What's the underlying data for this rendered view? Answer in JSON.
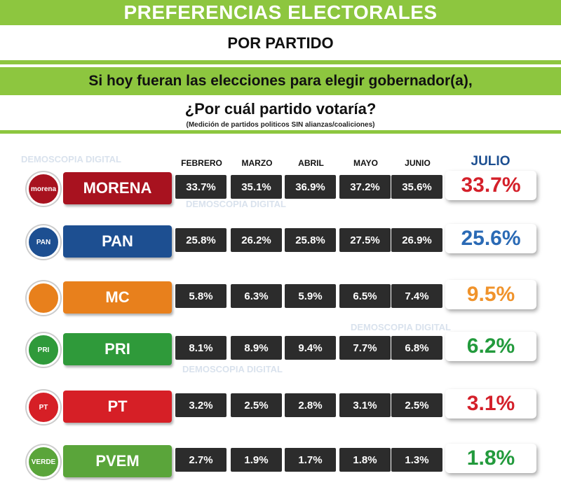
{
  "header": {
    "title": "PREFERENCIAS ELECTORALES",
    "subtitle": "POR PARTIDO",
    "question": "Si hoy fueran las elecciones para elegir gobernador(a),",
    "question2": "¿Por cuál partido votaría?",
    "note": "(Medición de partidos politicos SIN alianzas/coaliciones)"
  },
  "watermark": "DEMOSCOPIA DIGITAL",
  "colors": {
    "accent_green": "#8dc63f",
    "MORENA": "#a8121f",
    "PAN": "#1d4f91",
    "MC": "#e8801c",
    "PRI": "#2f9a3a",
    "PT": "#d61f26",
    "PVEM": "#5aa53a"
  },
  "chart_data": {
    "type": "table",
    "columns": [
      "FEBRERO",
      "MARZO",
      "ABRIL",
      "MAYO",
      "JUNIO",
      "JULIO"
    ],
    "rows": [
      {
        "party": "MORENA",
        "logo_text": "morena",
        "values": [
          "33.7%",
          "35.1%",
          "36.9%",
          "37.2%",
          "35.6%",
          "33.7%"
        ],
        "highlight_color": "#d4202a"
      },
      {
        "party": "PAN",
        "logo_text": "PAN",
        "values": [
          "25.8%",
          "26.2%",
          "25.8%",
          "27.5%",
          "26.9%",
          "25.6%"
        ],
        "highlight_color": "#2a6ab5"
      },
      {
        "party": "MC",
        "logo_text": "",
        "values": [
          "5.8%",
          "6.3%",
          "5.9%",
          "6.5%",
          "7.4%",
          "9.5%"
        ],
        "highlight_color": "#f0932b"
      },
      {
        "party": "PRI",
        "logo_text": "PRI",
        "values": [
          "8.1%",
          "8.9%",
          "9.4%",
          "7.7%",
          "6.8%",
          "6.2%"
        ],
        "highlight_color": "#229a3c"
      },
      {
        "party": "PT",
        "logo_text": "PT",
        "values": [
          "3.2%",
          "2.5%",
          "2.8%",
          "3.1%",
          "2.5%",
          "3.1%"
        ],
        "highlight_color": "#d4202a"
      },
      {
        "party": "PVEM",
        "logo_text": "VERDE",
        "values": [
          "2.7%",
          "1.9%",
          "1.7%",
          "1.8%",
          "1.3%",
          "1.8%"
        ],
        "highlight_color": "#229a3c"
      }
    ]
  }
}
